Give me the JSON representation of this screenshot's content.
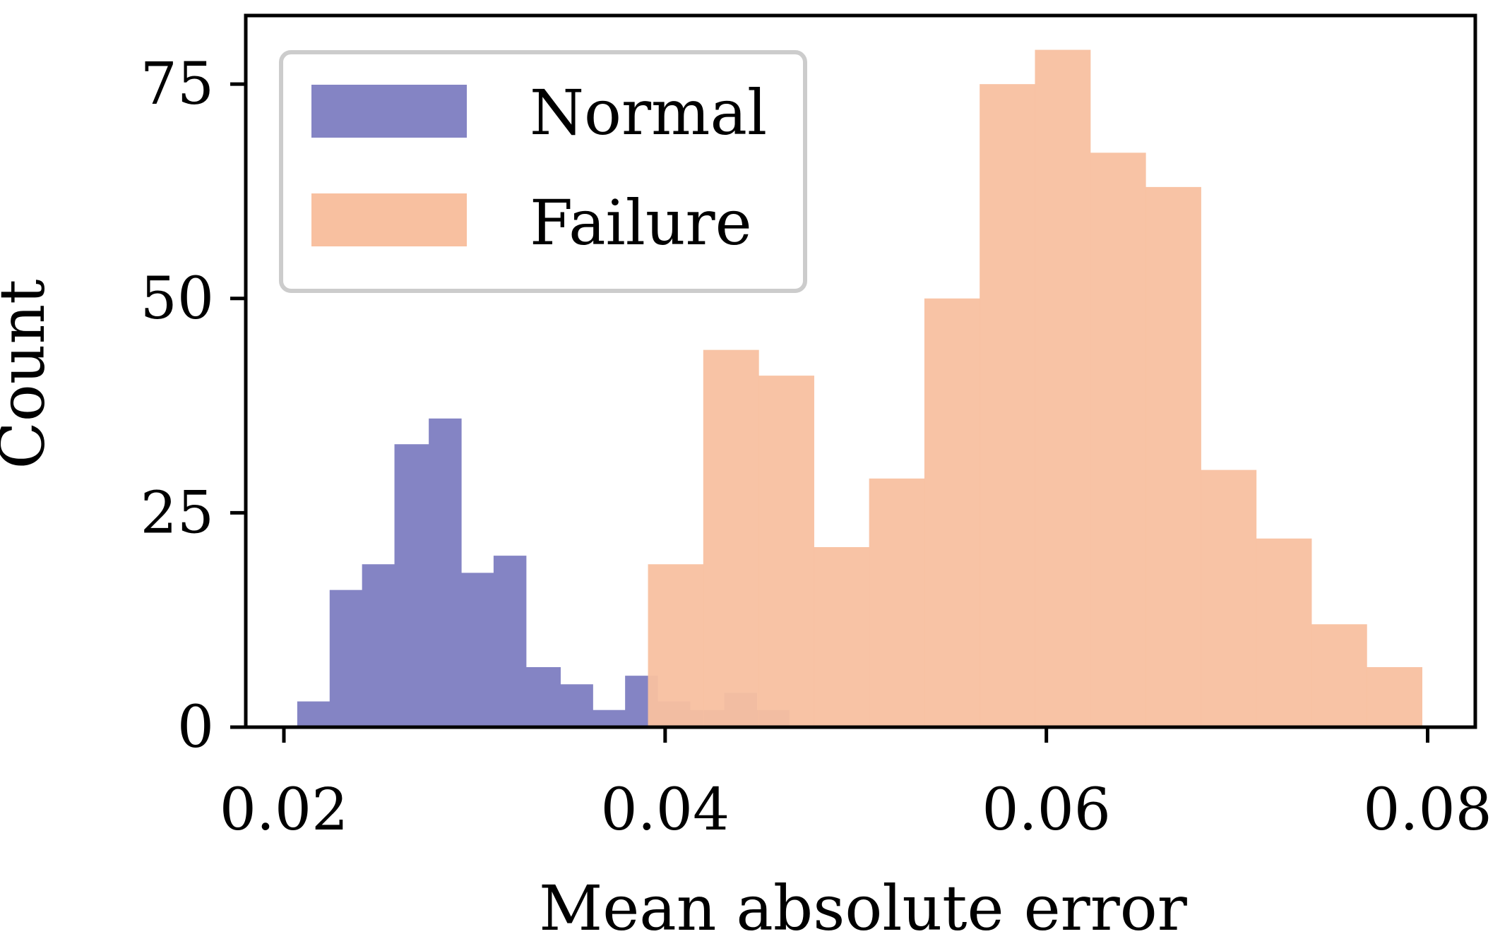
{
  "chart_data": {
    "type": "histogram",
    "title": "",
    "xlabel": "Mean absolute error",
    "ylabel": "Count",
    "xlim": [
      0.018,
      0.0825
    ],
    "ylim": [
      0,
      83
    ],
    "x_ticks": [
      0.02,
      0.04,
      0.06,
      0.08
    ],
    "x_tick_labels": [
      "0.02",
      "0.04",
      "0.06",
      "0.08"
    ],
    "y_ticks": [
      0,
      25,
      50,
      75
    ],
    "y_tick_labels": [
      "0",
      "25",
      "50",
      "75"
    ],
    "grid": false,
    "legend": {
      "position": "top-left"
    },
    "series": [
      {
        "name": "Normal",
        "color": "#8484c4",
        "bin_edges": [
          0.0207,
          0.0224,
          0.0241,
          0.0258,
          0.0276,
          0.0293,
          0.031,
          0.0327,
          0.0345,
          0.0362,
          0.0379,
          0.0396,
          0.0413,
          0.0431,
          0.0448,
          0.0465
        ],
        "counts": [
          3,
          16,
          19,
          33,
          36,
          18,
          20,
          7,
          5,
          2,
          6,
          3,
          2,
          4,
          2
        ]
      },
      {
        "name": "Failure",
        "color": "#f8c0a0",
        "bin_edges": [
          0.0391,
          0.042,
          0.0449,
          0.0478,
          0.0507,
          0.0536,
          0.0565,
          0.0594,
          0.0623,
          0.0652,
          0.0681,
          0.071,
          0.0739,
          0.0768,
          0.0797
        ],
        "counts": [
          19,
          44,
          41,
          21,
          29,
          50,
          75,
          79,
          67,
          63,
          30,
          22,
          12,
          7
        ]
      }
    ]
  }
}
